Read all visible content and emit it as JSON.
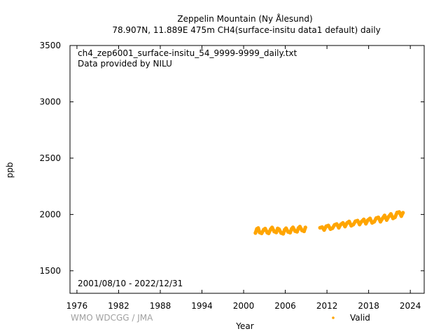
{
  "chart_data": {
    "type": "scatter",
    "title": "Zeppelin Mountain (Ny Ålesund)",
    "subtitle": "78.907N, 11.889E 475m    CH4(surface-insitu data1 default) daily",
    "filename": "ch4_zep6001_surface-insitu_54_9999-9999_daily.txt",
    "provider": "Data provided by NILU",
    "date_range": "2001/08/10 - 2022/12/31",
    "credit": "WMO WDCGG / JMA",
    "xlabel": "Year",
    "ylabel": "ppb",
    "xlim": [
      1975,
      2026
    ],
    "ylim": [
      1300,
      3500
    ],
    "x_ticks": [
      "1976",
      "1982",
      "1988",
      "1994",
      "2000",
      "2006",
      "2012",
      "2018",
      "2024"
    ],
    "y_ticks": [
      "1500",
      "2000",
      "2500",
      "3000",
      "3500"
    ],
    "grid": false,
    "legend_position": "bottom-right",
    "series": [
      {
        "name": "Valid",
        "color": "#ffa500",
        "points": [
          [
            2001.7,
            1835
          ],
          [
            2001.9,
            1872
          ],
          [
            2002.1,
            1880
          ],
          [
            2002.3,
            1840
          ],
          [
            2002.6,
            1832
          ],
          [
            2002.9,
            1866
          ],
          [
            2003.1,
            1875
          ],
          [
            2003.4,
            1838
          ],
          [
            2003.6,
            1832
          ],
          [
            2003.9,
            1870
          ],
          [
            2004.1,
            1885
          ],
          [
            2004.4,
            1848
          ],
          [
            2004.7,
            1840
          ],
          [
            2004.9,
            1876
          ],
          [
            2005.1,
            1870
          ],
          [
            2005.4,
            1835
          ],
          [
            2005.7,
            1828
          ],
          [
            2005.9,
            1864
          ],
          [
            2006.1,
            1878
          ],
          [
            2006.4,
            1845
          ],
          [
            2006.7,
            1838
          ],
          [
            2006.9,
            1872
          ],
          [
            2007.1,
            1886
          ],
          [
            2007.4,
            1852
          ],
          [
            2007.7,
            1846
          ],
          [
            2007.9,
            1880
          ],
          [
            2008.1,
            1892
          ],
          [
            2008.4,
            1858
          ],
          [
            2008.7,
            1850
          ],
          [
            2008.9,
            1885
          ],
          [
            2011.0,
            1882
          ],
          [
            2011.3,
            1888
          ],
          [
            2011.6,
            1862
          ],
          [
            2011.9,
            1896
          ],
          [
            2012.2,
            1902
          ],
          [
            2012.5,
            1870
          ],
          [
            2012.8,
            1878
          ],
          [
            2013.1,
            1908
          ],
          [
            2013.4,
            1915
          ],
          [
            2013.7,
            1882
          ],
          [
            2014.0,
            1912
          ],
          [
            2014.3,
            1925
          ],
          [
            2014.6,
            1892
          ],
          [
            2014.9,
            1925
          ],
          [
            2015.2,
            1938
          ],
          [
            2015.5,
            1900
          ],
          [
            2015.8,
            1910
          ],
          [
            2016.1,
            1940
          ],
          [
            2016.4,
            1946
          ],
          [
            2016.7,
            1910
          ],
          [
            2017.0,
            1938
          ],
          [
            2017.3,
            1956
          ],
          [
            2017.6,
            1918
          ],
          [
            2017.9,
            1950
          ],
          [
            2018.2,
            1965
          ],
          [
            2018.5,
            1925
          ],
          [
            2018.8,
            1935
          ],
          [
            2019.1,
            1968
          ],
          [
            2019.4,
            1974
          ],
          [
            2019.7,
            1935
          ],
          [
            2020.0,
            1965
          ],
          [
            2020.3,
            1992
          ],
          [
            2020.6,
            1950
          ],
          [
            2020.9,
            1982
          ],
          [
            2021.2,
            2005
          ],
          [
            2021.5,
            1965
          ],
          [
            2021.8,
            1975
          ],
          [
            2022.1,
            2018
          ],
          [
            2022.4,
            2022
          ],
          [
            2022.7,
            1985
          ],
          [
            2022.95,
            2015
          ]
        ]
      }
    ]
  }
}
